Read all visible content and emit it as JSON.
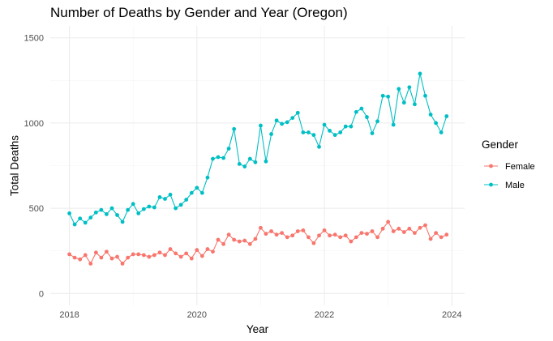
{
  "chart_data": {
    "type": "line",
    "title": "Number of Deaths by Gender and Year (Oregon)",
    "xlabel": "Year",
    "ylabel": "Total Deaths",
    "x_ticks": [
      2018,
      2020,
      2022,
      2024
    ],
    "y_ticks": [
      0,
      500,
      1000,
      1500
    ],
    "xlim": [
      2017.7,
      2024.2
    ],
    "ylim": [
      -70,
      1570
    ],
    "grid": true,
    "legend": {
      "title": "Gender",
      "position": "right"
    },
    "series": [
      {
        "name": "Female",
        "color": "#F8766D",
        "x": [
          2018.0,
          2018.083,
          2018.167,
          2018.25,
          2018.333,
          2018.417,
          2018.5,
          2018.583,
          2018.667,
          2018.75,
          2018.833,
          2018.917,
          2019.0,
          2019.083,
          2019.167,
          2019.25,
          2019.333,
          2019.417,
          2019.5,
          2019.583,
          2019.667,
          2019.75,
          2019.833,
          2019.917,
          2020.0,
          2020.083,
          2020.167,
          2020.25,
          2020.333,
          2020.417,
          2020.5,
          2020.583,
          2020.667,
          2020.75,
          2020.833,
          2020.917,
          2021.0,
          2021.083,
          2021.167,
          2021.25,
          2021.333,
          2021.417,
          2021.5,
          2021.583,
          2021.667,
          2021.75,
          2021.833,
          2021.917,
          2022.0,
          2022.083,
          2022.167,
          2022.25,
          2022.333,
          2022.417,
          2022.5,
          2022.583,
          2022.667,
          2022.75,
          2022.833,
          2022.917,
          2023.0,
          2023.083,
          2023.167,
          2023.25,
          2023.333,
          2023.417,
          2023.5,
          2023.583,
          2023.667,
          2023.75,
          2023.833,
          2023.917
        ],
        "y": [
          230,
          210,
          200,
          225,
          175,
          240,
          210,
          245,
          205,
          215,
          175,
          210,
          230,
          230,
          225,
          215,
          225,
          240,
          225,
          260,
          235,
          215,
          235,
          205,
          255,
          220,
          260,
          245,
          315,
          290,
          345,
          315,
          305,
          310,
          290,
          320,
          385,
          350,
          365,
          345,
          355,
          330,
          340,
          365,
          370,
          330,
          295,
          340,
          370,
          340,
          345,
          330,
          340,
          305,
          330,
          355,
          350,
          365,
          330,
          380,
          420,
          365,
          380,
          360,
          380,
          355,
          385,
          400,
          320,
          355,
          330,
          345
        ]
      },
      {
        "name": "Male",
        "color": "#00BFC4",
        "x": [
          2018.0,
          2018.083,
          2018.167,
          2018.25,
          2018.333,
          2018.417,
          2018.5,
          2018.583,
          2018.667,
          2018.75,
          2018.833,
          2018.917,
          2019.0,
          2019.083,
          2019.167,
          2019.25,
          2019.333,
          2019.417,
          2019.5,
          2019.583,
          2019.667,
          2019.75,
          2019.833,
          2019.917,
          2020.0,
          2020.083,
          2020.167,
          2020.25,
          2020.333,
          2020.417,
          2020.5,
          2020.583,
          2020.667,
          2020.75,
          2020.833,
          2020.917,
          2021.0,
          2021.083,
          2021.167,
          2021.25,
          2021.333,
          2021.417,
          2021.5,
          2021.583,
          2021.667,
          2021.75,
          2021.833,
          2021.917,
          2022.0,
          2022.083,
          2022.167,
          2022.25,
          2022.333,
          2022.417,
          2022.5,
          2022.583,
          2022.667,
          2022.75,
          2022.833,
          2022.917,
          2023.0,
          2023.083,
          2023.167,
          2023.25,
          2023.333,
          2023.417,
          2023.5,
          2023.583,
          2023.667,
          2023.75,
          2023.833,
          2023.917
        ],
        "y": [
          470,
          405,
          440,
          415,
          445,
          475,
          490,
          465,
          500,
          460,
          420,
          490,
          525,
          470,
          495,
          510,
          505,
          565,
          555,
          580,
          500,
          520,
          550,
          590,
          620,
          590,
          680,
          790,
          800,
          795,
          850,
          965,
          760,
          745,
          790,
          770,
          985,
          775,
          935,
          1015,
          995,
          1005,
          1030,
          1060,
          945,
          945,
          930,
          860,
          990,
          955,
          930,
          945,
          980,
          980,
          1065,
          1085,
          1035,
          940,
          1010,
          1160,
          1155,
          990,
          1200,
          1120,
          1210,
          1110,
          1290,
          1160,
          1050,
          1000,
          945,
          1040
        ]
      }
    ]
  }
}
